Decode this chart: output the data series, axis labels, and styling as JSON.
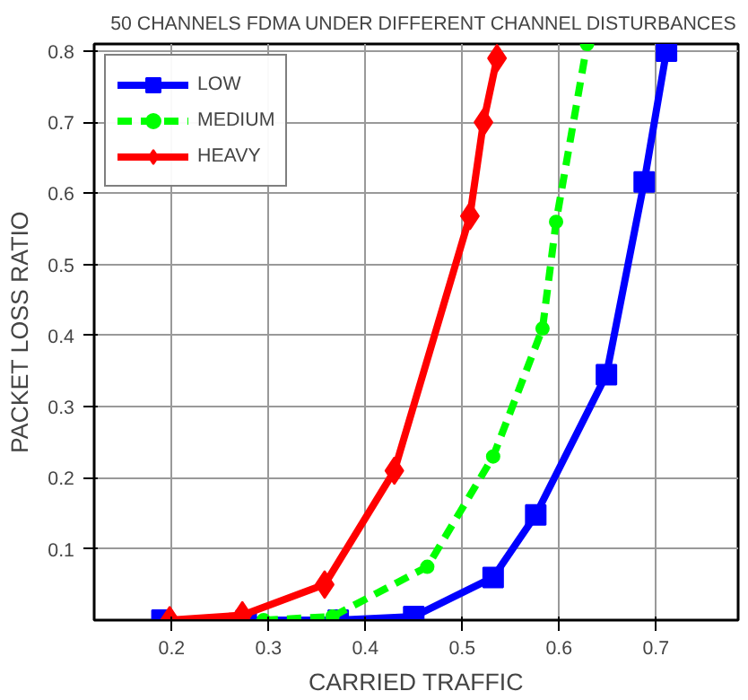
{
  "chart_data": {
    "type": "line",
    "title": "50 CHANNELS FDMA UNDER DIFFERENT CHANNEL DISTURBANCES",
    "xlabel": "CARRIED TRAFFIC",
    "ylabel": "PACKET LOSS RATIO",
    "xlim": [
      0.12,
      0.785
    ],
    "ylim": [
      0,
      0.81
    ],
    "xticks": [
      0.2,
      0.3,
      0.4,
      0.5,
      0.6,
      0.7
    ],
    "yticks": [
      0.1,
      0.2,
      0.3,
      0.4,
      0.5,
      0.6,
      0.7,
      0.8
    ],
    "grid": true,
    "legend": "top left",
    "series": [
      {
        "name": "LOW",
        "color": "#0000ff",
        "marker": "square",
        "line_style": "solid",
        "x": [
          0.19,
          0.277,
          0.372,
          0.45,
          0.532,
          0.576,
          0.649,
          0.688,
          0.711
        ],
        "values": [
          0,
          0,
          0,
          0.005,
          0.06,
          0.148,
          0.345,
          0.616,
          0.8
        ]
      },
      {
        "name": "MEDIUM",
        "color": "#00ff00",
        "marker": "circle",
        "line_style": "dashed",
        "x": [
          0.295,
          0.366,
          0.464,
          0.532,
          0.583,
          0.597,
          0.629
        ],
        "values": [
          0,
          0.005,
          0.075,
          0.23,
          0.41,
          0.56,
          0.81
        ]
      },
      {
        "name": "HEAVY",
        "color": "#ff0000",
        "marker": "diamond",
        "line_style": "solid",
        "x": [
          0.198,
          0.273,
          0.358,
          0.43,
          0.508,
          0.522,
          0.536
        ],
        "values": [
          0,
          0.007,
          0.05,
          0.21,
          0.568,
          0.7,
          0.79
        ]
      }
    ]
  }
}
